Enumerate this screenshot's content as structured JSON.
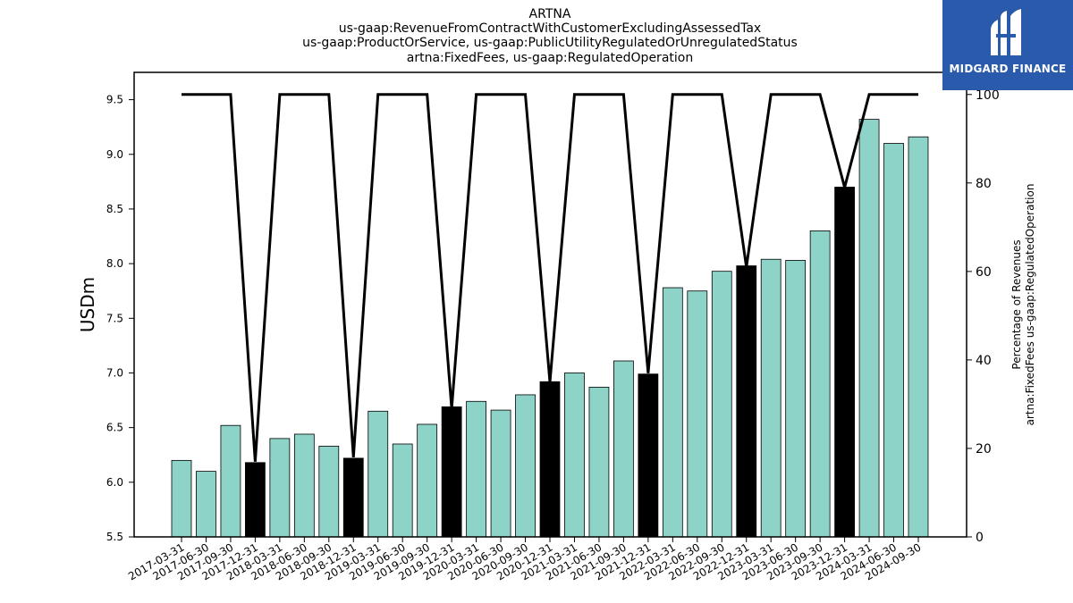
{
  "chart_data": {
    "type": "bar",
    "title_lines": [
      "ARTNA",
      "us-gaap:RevenueFromContractWithCustomerExcludingAssessedTax",
      "us-gaap:ProductOrService, us-gaap:PublicUtilityRegulatedOrUnregulatedStatus",
      "artna:FixedFees, us-gaap:RegulatedOperation"
    ],
    "ylabel": "USDm",
    "ylabel2_lines": [
      "Percentage of Revenues",
      "artna:FixedFees us-gaap:RegulatedOperation"
    ],
    "categories": [
      "2017-03-31",
      "2017-06-30",
      "2017-09-30",
      "2017-12-31",
      "2018-03-31",
      "2018-06-30",
      "2018-09-30",
      "2018-12-31",
      "2019-03-31",
      "2019-06-30",
      "2019-09-30",
      "2019-12-31",
      "2020-03-31",
      "2020-06-30",
      "2020-09-30",
      "2020-12-31",
      "2021-03-31",
      "2021-06-30",
      "2021-09-30",
      "2021-12-31",
      "2022-03-31",
      "2022-06-30",
      "2022-09-30",
      "2022-12-31",
      "2023-03-31",
      "2023-06-30",
      "2023-09-30",
      "2023-12-31",
      "2024-03-31",
      "2024-06-30",
      "2024-09-30"
    ],
    "values": [
      6.2,
      6.1,
      6.52,
      6.18,
      6.4,
      6.44,
      6.33,
      6.22,
      6.65,
      6.35,
      6.53,
      6.69,
      6.74,
      6.66,
      6.8,
      6.92,
      7.0,
      6.87,
      7.11,
      6.99,
      7.78,
      7.75,
      7.93,
      7.98,
      8.04,
      8.03,
      8.3,
      8.7,
      9.32,
      9.1,
      9.16
    ],
    "highlight": [
      false,
      false,
      false,
      true,
      false,
      false,
      false,
      true,
      false,
      false,
      false,
      true,
      false,
      false,
      false,
      true,
      false,
      false,
      false,
      true,
      false,
      false,
      false,
      true,
      false,
      false,
      false,
      true,
      false,
      false,
      false
    ],
    "bar_color": "#8dd3c7",
    "highlight_color": "#000000",
    "line_series": {
      "name": "",
      "values": [
        100,
        100,
        100,
        17,
        100,
        100,
        100,
        18,
        100,
        100,
        100,
        29,
        100,
        100,
        100,
        35,
        100,
        100,
        100,
        37,
        100,
        100,
        100,
        61,
        100,
        100,
        100,
        79,
        100,
        100,
        100
      ]
    },
    "ylim": [
      5.5,
      9.75
    ],
    "ylim2": [
      0,
      105
    ],
    "yticks": [
      "5.5",
      "6.0",
      "6.5",
      "7.0",
      "7.5",
      "8.0",
      "8.5",
      "9.0",
      "9.5"
    ],
    "yticks2": [
      "0",
      "20",
      "40",
      "60",
      "80",
      "100"
    ]
  },
  "logo": {
    "text": "MIDGARD FINANCE",
    "color": "#2a5aab"
  }
}
